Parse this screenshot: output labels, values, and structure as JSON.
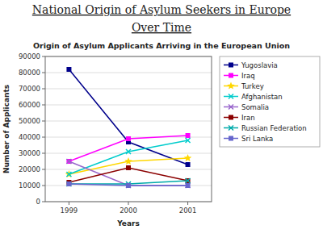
{
  "chart_data": {
    "type": "line",
    "title": [
      "National Origin of Asylum Seekers in Europe",
      "Over Time"
    ],
    "subtitle": "Origin of Asylum Applicants Arriving in the European Union",
    "x_label": "Years",
    "y_label": "Number of Applicants",
    "x": [
      1999,
      2000,
      2001
    ],
    "xlim": [
      1998.6,
      2001.4
    ],
    "xticks": [
      1999,
      2000,
      2001
    ],
    "ylim": [
      0,
      90000
    ],
    "yticks": [
      0,
      10000,
      20000,
      30000,
      40000,
      50000,
      60000,
      70000,
      80000,
      90000
    ],
    "grid": true,
    "legend": "right",
    "series": [
      {
        "name": "Yugoslavia",
        "color": "#00008B",
        "marker": "square",
        "values": [
          82000,
          37000,
          23000
        ]
      },
      {
        "name": "Iraq",
        "color": "#FF00FF",
        "marker": "square",
        "values": [
          25000,
          39000,
          41000
        ]
      },
      {
        "name": "Turkey",
        "color": "#FFD700",
        "marker": "star",
        "values": [
          17000,
          25000,
          27000
        ]
      },
      {
        "name": "Afghanistan",
        "color": "#00CCCC",
        "marker": "x",
        "values": [
          17000,
          31000,
          38000
        ]
      },
      {
        "name": "Somalia",
        "color": "#9966CC",
        "marker": "x",
        "values": [
          25000,
          10000,
          10000
        ]
      },
      {
        "name": "Iran",
        "color": "#8B0000",
        "marker": "square",
        "values": [
          12000,
          21000,
          13000
        ]
      },
      {
        "name": "Russian Federation",
        "color": "#00AAAA",
        "marker": "x",
        "values": [
          11000,
          11000,
          13000
        ]
      },
      {
        "name": "Sri Lanka",
        "color": "#6666CC",
        "marker": "square",
        "values": [
          11000,
          10000,
          10000
        ]
      }
    ]
  }
}
